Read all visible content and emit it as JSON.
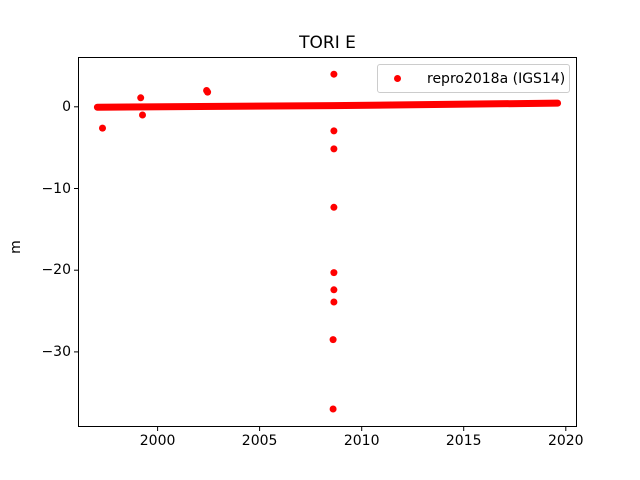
{
  "chart_data": {
    "type": "scatter",
    "title": "TORI E",
    "xlabel": "",
    "ylabel": "m",
    "xlim": [
      1996.1,
      2020.55
    ],
    "ylim": [
      -39.2,
      6.1
    ],
    "x_ticks": [
      2000,
      2005,
      2010,
      2015,
      2020
    ],
    "x_tick_labels": [
      "2000",
      "2005",
      "2010",
      "2015",
      "2020"
    ],
    "y_ticks": [
      0,
      -10,
      -20,
      -30
    ],
    "y_tick_labels": [
      "0",
      "−10",
      "−20",
      "−30"
    ],
    "grid": false,
    "background_color": "#ffffff",
    "spine_color": "#000000",
    "legend": {
      "position": "upper right",
      "edge_color": "#cccccc",
      "entries": [
        {
          "label": "repro2018a (IGS14)",
          "color": "#ff0000",
          "marker": "dot"
        }
      ]
    },
    "series": [
      {
        "name": "repro2018a (IGS14)",
        "color": "#ff0000",
        "marker": "dot",
        "marker_px": 7,
        "dense_band": {
          "note": "continuous daily solutions forming a thick near-horizontal line",
          "points": [
            [
              1997.05,
              -0.05
            ],
            [
              2008.6,
              0.15
            ],
            [
              2019.6,
              0.45
            ]
          ]
        },
        "outliers": [
          [
            1997.3,
            -2.6
          ],
          [
            1999.17,
            1.1
          ],
          [
            1999.26,
            -1.0
          ],
          [
            2002.4,
            2.0
          ],
          [
            2002.45,
            1.8
          ],
          [
            2008.64,
            4.0
          ],
          [
            2008.64,
            -2.95
          ],
          [
            2008.64,
            -5.15
          ],
          [
            2008.64,
            -12.3
          ],
          [
            2008.64,
            -20.3
          ],
          [
            2008.64,
            -22.4
          ],
          [
            2008.64,
            -23.9
          ],
          [
            2008.6,
            -28.5
          ],
          [
            2008.6,
            -37.0
          ]
        ]
      }
    ]
  }
}
